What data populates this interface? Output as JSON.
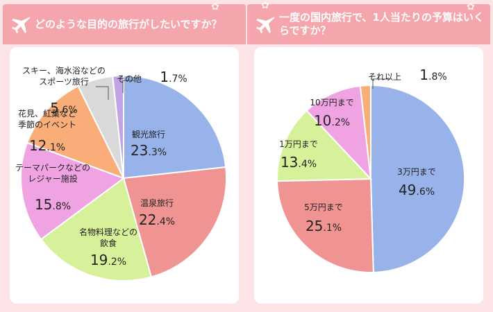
{
  "colors": {
    "header_bg": "#f5a5ac",
    "page_bg": "#fbe3e6"
  },
  "header_icon": "airplane-icon",
  "chart_data": [
    {
      "type": "pie",
      "title": "どのような目的の旅行がしたいですか？",
      "slices": [
        {
          "label": "観光旅行",
          "value": 23.3,
          "color": "#98b3e9"
        },
        {
          "label": "温泉旅行",
          "value": 22.4,
          "color": "#ef9492"
        },
        {
          "label": "名物料理などの飲食",
          "value": 19.2,
          "color": "#d7f09a"
        },
        {
          "label": "テーマパークなどのレジャー施設",
          "value": 15.8,
          "color": "#f0a3e2"
        },
        {
          "label": "花見、紅葉など季節のイベント",
          "value": 12.1,
          "color": "#f9ad78"
        },
        {
          "label": "スキー、海水浴などのスポーツ旅行",
          "value": 5.6,
          "color": "#d9d9d9"
        },
        {
          "label": "その他",
          "value": 1.7,
          "color": "#c2a4e6"
        }
      ]
    },
    {
      "type": "pie",
      "title": "一度の国内旅行で、1人当たりの予算はいくらですか？",
      "slices": [
        {
          "label": "3万円まで",
          "value": 49.6,
          "color": "#98b3e9"
        },
        {
          "label": "5万円まで",
          "value": 25.1,
          "color": "#ef9492"
        },
        {
          "label": "1万円まで",
          "value": 13.4,
          "color": "#d7f09a"
        },
        {
          "label": "10万円まで",
          "value": 10.2,
          "color": "#f0a3e2"
        },
        {
          "label": "それ以上",
          "value": 1.8,
          "color": "#f9ad78"
        }
      ]
    }
  ]
}
